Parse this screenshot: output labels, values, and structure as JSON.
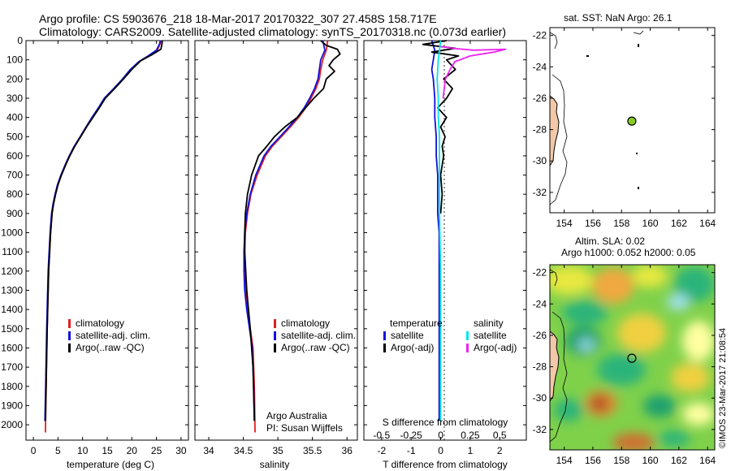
{
  "header": {
    "line1": "Argo profile: CS 5903676_218 18-Mar-2017 20170322_307 27.458S 158.717E",
    "line2": "Climatology: CARS2009. Satellite-adjusted climatology: synTS_20170318.nc (0.073d earlier)"
  },
  "credit": "©IMOS 23-Mar-2017 21:08:54",
  "colors": {
    "climatology": "#e02020",
    "satellite": "#1010dd",
    "argo": "#000000",
    "satellite_salinity": "#00e5e5",
    "argo_salinity": "#ee22ee",
    "sst_dot": "#88cc22",
    "land": "#f2c8a8"
  },
  "chart_data": [
    {
      "id": "temperature",
      "type": "line",
      "xlabel": "temperature (deg C)",
      "ylabel": "",
      "xlim": [
        -1.5,
        31.5
      ],
      "ylim": [
        2080,
        0
      ],
      "xticks": [
        "0",
        "5",
        "10",
        "15",
        "20",
        "25",
        "30"
      ],
      "yticks": [
        "0",
        "100",
        "200",
        "300",
        "400",
        "500",
        "600",
        "700",
        "800",
        "900",
        "1000",
        "1100",
        "1200",
        "1300",
        "1400",
        "1500",
        "1600",
        "1700",
        "1800",
        "1900",
        "2000"
      ],
      "legend": [
        "climatology",
        "satellite-adj. clim.",
        "Argo(..raw -QC)"
      ],
      "series": [
        {
          "name": "climatology",
          "x": [
            26.0,
            25.7,
            25.2,
            23.5,
            21.5,
            19.8,
            18.2,
            16.4,
            14.5,
            13.3,
            12.0,
            10.8,
            9.6,
            8.4,
            7.4,
            6.5,
            5.7,
            5.0,
            4.5,
            4.1,
            3.8,
            3.5,
            3.1,
            2.8,
            2.6,
            2.45
          ],
          "y": [
            0,
            20,
            50,
            80,
            110,
            150,
            200,
            250,
            300,
            350,
            400,
            450,
            500,
            550,
            600,
            650,
            700,
            750,
            800,
            850,
            900,
            1000,
            1200,
            1500,
            1800,
            2040
          ]
        },
        {
          "name": "satellite-adj. clim.",
          "x": [
            25.8,
            25.6,
            25.0,
            23.3,
            21.4,
            19.7,
            18.1,
            16.3,
            14.4,
            13.2,
            11.9,
            10.7,
            9.5,
            8.3,
            7.3,
            6.4,
            5.6,
            4.9,
            4.4,
            4.0,
            3.7,
            3.4,
            3.0,
            2.7,
            2.5,
            2.35
          ],
          "y": [
            0,
            20,
            50,
            80,
            110,
            150,
            200,
            250,
            300,
            350,
            400,
            450,
            500,
            550,
            600,
            650,
            700,
            750,
            800,
            850,
            900,
            1000,
            1200,
            1500,
            1800,
            1980
          ]
        },
        {
          "name": "Argo(..raw -QC)",
          "x": [
            26.2,
            26.1,
            25.9,
            24.0,
            21.8,
            20.0,
            18.3,
            16.5,
            14.6,
            13.4,
            12.1,
            10.8,
            9.6,
            8.4,
            7.4,
            6.5,
            5.7,
            5.0,
            4.5,
            4.1,
            3.8,
            3.5,
            3.1,
            2.8,
            2.6,
            2.45
          ],
          "y": [
            0,
            20,
            45,
            75,
            105,
            150,
            200,
            250,
            300,
            350,
            400,
            450,
            500,
            550,
            600,
            650,
            700,
            750,
            800,
            850,
            900,
            1000,
            1200,
            1500,
            1800,
            1980
          ]
        }
      ]
    },
    {
      "id": "salinity",
      "type": "line",
      "xlabel": "salinity",
      "ylabel": "",
      "xlim": [
        33.8,
        36.15
      ],
      "ylim": [
        2080,
        0
      ],
      "xticks": [
        "34",
        "34.5",
        "35",
        "35.5",
        "36"
      ],
      "legend": [
        "climatology",
        "satellite-adj. clim.",
        "Argo(..raw -QC)"
      ],
      "annotation": [
        "Argo Australia",
        "PI: Susan Wijffels"
      ],
      "series": [
        {
          "name": "climatology",
          "x": [
            35.72,
            35.7,
            35.65,
            35.62,
            35.6,
            35.55,
            35.48,
            35.4,
            35.3,
            35.18,
            35.05,
            34.92,
            34.82,
            34.7,
            34.61,
            34.56,
            34.53,
            34.52,
            34.52,
            34.53,
            34.56,
            34.6,
            34.64,
            34.66,
            34.67
          ],
          "y": [
            0,
            50,
            100,
            150,
            200,
            250,
            300,
            350,
            400,
            450,
            500,
            550,
            600,
            700,
            800,
            900,
            1000,
            1100,
            1200,
            1300,
            1400,
            1500,
            1600,
            1800,
            2040
          ]
        },
        {
          "name": "satellite-adj. clim.",
          "x": [
            35.65,
            35.68,
            35.62,
            35.6,
            35.58,
            35.53,
            35.46,
            35.38,
            35.28,
            35.16,
            35.03,
            34.9,
            34.8,
            34.68,
            34.6,
            34.55,
            34.52,
            34.51,
            34.51,
            34.52,
            34.55,
            34.59,
            34.63,
            34.65,
            34.66
          ],
          "y": [
            0,
            50,
            100,
            150,
            200,
            250,
            300,
            350,
            400,
            450,
            500,
            550,
            600,
            700,
            800,
            900,
            1000,
            1100,
            1200,
            1300,
            1400,
            1500,
            1600,
            1800,
            1980
          ]
        },
        {
          "name": "Argo(..raw -QC)",
          "x": [
            35.62,
            35.7,
            35.86,
            35.9,
            35.8,
            35.74,
            35.82,
            35.7,
            35.66,
            35.52,
            35.4,
            35.28,
            35.1,
            34.95,
            34.84,
            34.72,
            34.62,
            34.56,
            34.53,
            34.52,
            34.52,
            34.55,
            34.6,
            34.64,
            34.66
          ],
          "y": [
            0,
            25,
            45,
            70,
            100,
            130,
            160,
            200,
            250,
            300,
            350,
            400,
            450,
            500,
            550,
            600,
            700,
            800,
            900,
            1000,
            1100,
            1300,
            1500,
            1700,
            1980
          ]
        }
      ]
    },
    {
      "id": "differences",
      "type": "line",
      "xlabel": "T difference from climatology",
      "x2label": "S difference from climatology",
      "xlim": [
        -2.6,
        2.9
      ],
      "ylim": [
        2080,
        0
      ],
      "xticks": [
        "-2",
        "-1",
        "0",
        "1",
        "2"
      ],
      "x2ticks": [
        "-0.5",
        "-0.25",
        "0",
        "0.25",
        "0.5"
      ],
      "x2lim": [
        -0.65,
        0.725
      ],
      "legend_titles": [
        "temperature",
        "salinity"
      ],
      "legend": [
        "satellite",
        "Argo(-adj)",
        "satellite",
        "Argo(-adj)"
      ],
      "series": [
        {
          "name": "temperature satellite",
          "x": [
            -0.3,
            -0.2,
            -0.25,
            -0.3,
            -0.25,
            -0.2,
            -0.2,
            -0.15,
            -0.15,
            -0.1,
            -0.1,
            -0.1,
            -0.05,
            -0.05,
            -0.05,
            -0.05,
            -0.05,
            -0.05
          ],
          "y": [
            0,
            50,
            100,
            150,
            200,
            300,
            400,
            500,
            600,
            700,
            800,
            900,
            1000,
            1200,
            1400,
            1600,
            1800,
            1980
          ]
        },
        {
          "name": "temperature Argo(-adj)",
          "x": [
            0.2,
            -0.6,
            0.5,
            -0.3,
            0.6,
            0.2,
            0.5,
            0.1,
            0.4,
            0.2,
            -0.1,
            0.2,
            0.0,
            0.15,
            0.05,
            0.1,
            0.0,
            0.05,
            0.0
          ],
          "y": [
            0,
            20,
            40,
            60,
            80,
            100,
            150,
            200,
            250,
            300,
            350,
            400,
            450,
            500,
            550,
            600,
            700,
            800,
            900
          ]
        },
        {
          "name": "salinity satellite",
          "x": [
            0.0,
            -0.02,
            -0.03,
            -0.02,
            -0.02,
            -0.01,
            -0.01,
            -0.01,
            0.0,
            0.0,
            0.0,
            0.0
          ],
          "y": [
            0,
            100,
            200,
            300,
            400,
            500,
            700,
            900,
            1200,
            1500,
            1800,
            1980
          ]
        },
        {
          "name": "salinity Argo(-adj)",
          "x": [
            0.0,
            0.1,
            0.28,
            0.55,
            0.45,
            0.25,
            0.12,
            0.08,
            0.04,
            0.02
          ],
          "y": [
            30,
            40,
            50,
            45,
            60,
            80,
            110,
            150,
            200,
            300
          ]
        }
      ]
    },
    {
      "id": "sst-map",
      "type": "scatter",
      "title": "sat. SST: NaN Argo: 26.1",
      "xlim": [
        153,
        164.5
      ],
      "ylim": [
        -33.3,
        -21.5
      ],
      "xticks": [
        "154",
        "156",
        "158",
        "160",
        "162",
        "164"
      ],
      "yticks": [
        "-22",
        "-24",
        "-26",
        "-28",
        "-30",
        "-32"
      ],
      "points": [
        {
          "x": 158.717,
          "y": -27.458
        }
      ]
    },
    {
      "id": "sla-map",
      "type": "heatmap",
      "title_line1": "Altim. SLA: 0.02",
      "title_line2": "Argo h1000: 0.052 h2000: 0.05",
      "xlim": [
        153,
        164.5
      ],
      "ylim": [
        -33.3,
        -21.5
      ],
      "xticks": [
        "154",
        "156",
        "158",
        "160",
        "162",
        "164"
      ],
      "yticks": [
        "-22",
        "-24",
        "-26",
        "-28",
        "-30",
        "-32"
      ],
      "points": [
        {
          "x": 158.717,
          "y": -27.458
        }
      ]
    }
  ]
}
